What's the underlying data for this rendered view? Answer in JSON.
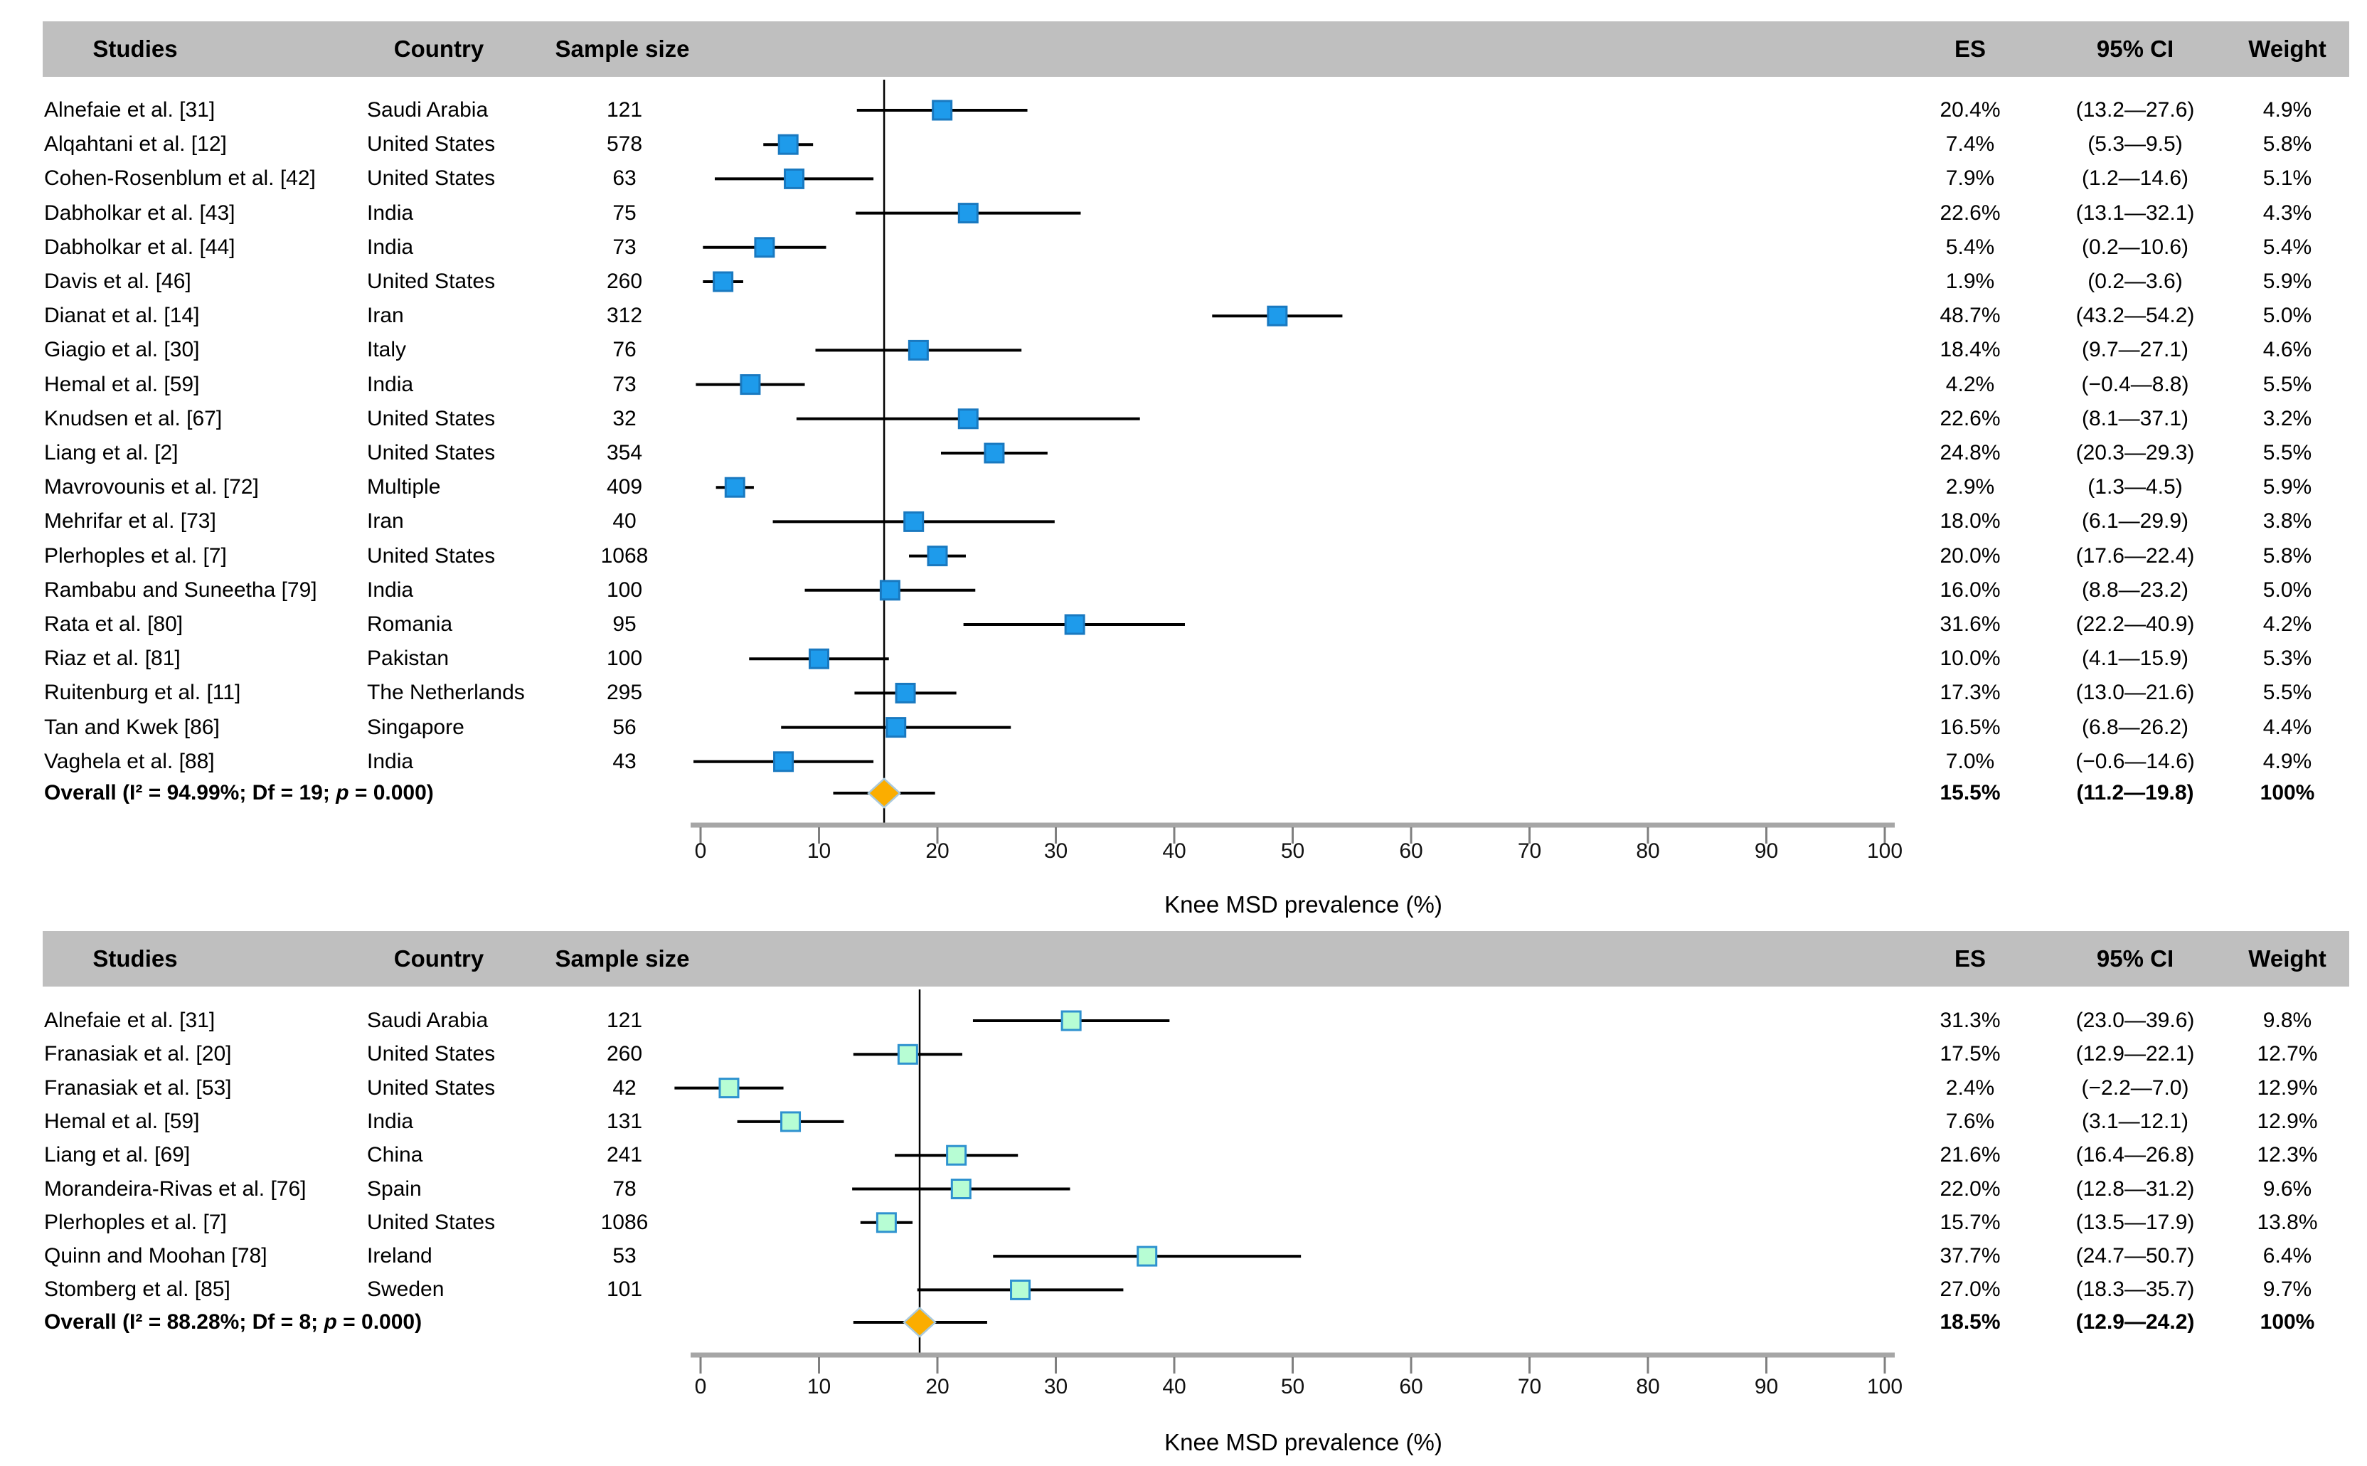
{
  "figure": {
    "description_label": "Forest plots of knee musculoskeletal disorder prevalence"
  },
  "columns": {
    "studies": "Studies",
    "country": "Country",
    "sample_size": "Sample size",
    "es": "ES",
    "ci": "95% CI",
    "weight": "Weight"
  },
  "axis": {
    "title": "Knee MSD prevalence (%)",
    "min": 0,
    "max": 100,
    "step": 10,
    "tick_labels": [
      "0",
      "10",
      "20",
      "30",
      "40",
      "50",
      "60",
      "70",
      "80",
      "90",
      "100"
    ]
  },
  "colors": {
    "header_bg": "#BFBFBF",
    "text": "#000000",
    "ci_line": "#000000",
    "reference_line": "#000000",
    "axis_line": "#A6A6A6",
    "axis_tick": "#7F7F7F",
    "top_marker_fill": "#1E9BEB",
    "top_marker_stroke": "#1979C0",
    "bottom_marker_fill": "#B7FDD4",
    "bottom_marker_stroke": "#2E92CF",
    "diamond_fill": "#FBAD00",
    "diamond_stroke": "#A9C9DC"
  },
  "chart_data": [
    {
      "id": "top",
      "type": "forest",
      "xlabel": "Knee MSD prevalence (%)",
      "xlim": [
        0,
        100
      ],
      "reference_value": 15.5,
      "marker": {
        "fill": "#1E9BEB",
        "stroke": "#1979C0"
      },
      "rows": [
        {
          "study": "Alnefaie et al. [31]",
          "country": "Saudi Arabia",
          "sample": "121",
          "es": 20.4,
          "ci_low": 13.2,
          "ci_high": 27.6,
          "es_label": "20.4%",
          "ci_label": "(13.2—27.6)",
          "weight_label": "4.9%"
        },
        {
          "study": "Alqahtani et al. [12]",
          "country": "United States",
          "sample": "578",
          "es": 7.4,
          "ci_low": 5.3,
          "ci_high": 9.5,
          "es_label": "7.4%",
          "ci_label": "(5.3—9.5)",
          "weight_label": "5.8%"
        },
        {
          "study": "Cohen-Rosenblum et al. [42]",
          "country": "United States",
          "sample": "63",
          "es": 7.9,
          "ci_low": 1.2,
          "ci_high": 14.6,
          "es_label": "7.9%",
          "ci_label": "(1.2—14.6)",
          "weight_label": "5.1%"
        },
        {
          "study": "Dabholkar et al. [43]",
          "country": "India",
          "sample": "75",
          "es": 22.6,
          "ci_low": 13.1,
          "ci_high": 32.1,
          "es_label": "22.6%",
          "ci_label": "(13.1—32.1)",
          "weight_label": "4.3%"
        },
        {
          "study": "Dabholkar et al. [44]",
          "country": "India",
          "sample": "73",
          "es": 5.4,
          "ci_low": 0.2,
          "ci_high": 10.6,
          "es_label": "5.4%",
          "ci_label": "(0.2—10.6)",
          "weight_label": "5.4%"
        },
        {
          "study": "Davis et al. [46]",
          "country": "United States",
          "sample": "260",
          "es": 1.9,
          "ci_low": 0.2,
          "ci_high": 3.6,
          "es_label": "1.9%",
          "ci_label": "(0.2—3.6)",
          "weight_label": "5.9%"
        },
        {
          "study": "Dianat et al. [14]",
          "country": "Iran",
          "sample": "312",
          "es": 48.7,
          "ci_low": 43.2,
          "ci_high": 54.2,
          "es_label": "48.7%",
          "ci_label": "(43.2—54.2)",
          "weight_label": "5.0%"
        },
        {
          "study": "Giagio et al. [30]",
          "country": "Italy",
          "sample": "76",
          "es": 18.4,
          "ci_low": 9.7,
          "ci_high": 27.1,
          "es_label": "18.4%",
          "ci_label": "(9.7—27.1)",
          "weight_label": "4.6%"
        },
        {
          "study": "Hemal et al. [59]",
          "country": "India",
          "sample": "73",
          "es": 4.2,
          "ci_low": -0.4,
          "ci_high": 8.8,
          "es_label": "4.2%",
          "ci_label": "(−0.4—8.8)",
          "weight_label": "5.5%"
        },
        {
          "study": "Knudsen et al. [67]",
          "country": "United States",
          "sample": "32",
          "es": 22.6,
          "ci_low": 8.1,
          "ci_high": 37.1,
          "es_label": "22.6%",
          "ci_label": "(8.1—37.1)",
          "weight_label": "3.2%"
        },
        {
          "study": "Liang et al. [2]",
          "country": "United States",
          "sample": "354",
          "es": 24.8,
          "ci_low": 20.3,
          "ci_high": 29.3,
          "es_label": "24.8%",
          "ci_label": "(20.3—29.3)",
          "weight_label": "5.5%"
        },
        {
          "study": "Mavrovounis et al. [72]",
          "country": "Multiple",
          "sample": "409",
          "es": 2.9,
          "ci_low": 1.3,
          "ci_high": 4.5,
          "es_label": "2.9%",
          "ci_label": "(1.3—4.5)",
          "weight_label": "5.9%"
        },
        {
          "study": "Mehrifar et al. [73]",
          "country": "Iran",
          "sample": "40",
          "es": 18.0,
          "ci_low": 6.1,
          "ci_high": 29.9,
          "es_label": "18.0%",
          "ci_label": "(6.1—29.9)",
          "weight_label": "3.8%"
        },
        {
          "study": "Plerhoples et al. [7]",
          "country": "United States",
          "sample": "1068",
          "es": 20.0,
          "ci_low": 17.6,
          "ci_high": 22.4,
          "es_label": "20.0%",
          "ci_label": "(17.6—22.4)",
          "weight_label": "5.8%"
        },
        {
          "study": "Rambabu and Suneetha [79]",
          "country": "India",
          "sample": "100",
          "es": 16.0,
          "ci_low": 8.8,
          "ci_high": 23.2,
          "es_label": "16.0%",
          "ci_label": "(8.8—23.2)",
          "weight_label": "5.0%"
        },
        {
          "study": "Rata et al. [80]",
          "country": "Romania",
          "sample": "95",
          "es": 31.6,
          "ci_low": 22.2,
          "ci_high": 40.9,
          "es_label": "31.6%",
          "ci_label": "(22.2—40.9)",
          "weight_label": "4.2%"
        },
        {
          "study": "Riaz et al. [81]",
          "country": "Pakistan",
          "sample": "100",
          "es": 10.0,
          "ci_low": 4.1,
          "ci_high": 15.9,
          "es_label": "10.0%",
          "ci_label": "(4.1—15.9)",
          "weight_label": "5.3%"
        },
        {
          "study": "Ruitenburg et al. [11]",
          "country": "The Netherlands",
          "sample": "295",
          "es": 17.3,
          "ci_low": 13.0,
          "ci_high": 21.6,
          "es_label": "17.3%",
          "ci_label": "(13.0—21.6)",
          "weight_label": "5.5%"
        },
        {
          "study": "Tan and Kwek [86]",
          "country": "Singapore",
          "sample": "56",
          "es": 16.5,
          "ci_low": 6.8,
          "ci_high": 26.2,
          "es_label": "16.5%",
          "ci_label": "(6.8—26.2)",
          "weight_label": "4.4%"
        },
        {
          "study": "Vaghela et al. [88]",
          "country": "India",
          "sample": "43",
          "es": 7.0,
          "ci_low": -0.6,
          "ci_high": 14.6,
          "es_label": "7.0%",
          "ci_label": "(−0.6—14.6)",
          "weight_label": "4.9%"
        }
      ],
      "overall": {
        "label_prefix": "Overall (I² = 94.99%; Df = 19; ",
        "label_p": "p",
        "label_suffix": " = 0.000)",
        "es": 15.5,
        "ci_low": 11.2,
        "ci_high": 19.8,
        "es_label": "15.5%",
        "ci_label": "(11.2—19.8)",
        "weight_label": "100%"
      }
    },
    {
      "id": "bottom",
      "type": "forest",
      "xlabel": "Knee MSD prevalence (%)",
      "xlim": [
        0,
        100
      ],
      "reference_value": 18.5,
      "marker": {
        "fill": "#B7FDD4",
        "stroke": "#2E92CF"
      },
      "rows": [
        {
          "study": "Alnefaie et al. [31]",
          "country": "Saudi Arabia",
          "sample": "121",
          "es": 31.3,
          "ci_low": 23.0,
          "ci_high": 39.6,
          "es_label": "31.3%",
          "ci_label": "(23.0—39.6)",
          "weight_label": "9.8%"
        },
        {
          "study": "Franasiak et al. [20]",
          "country": "United States",
          "sample": "260",
          "es": 17.5,
          "ci_low": 12.9,
          "ci_high": 22.1,
          "es_label": "17.5%",
          "ci_label": "(12.9—22.1)",
          "weight_label": "12.7%"
        },
        {
          "study": "Franasiak et al. [53]",
          "country": "United States",
          "sample": "42",
          "es": 2.4,
          "ci_low": -2.2,
          "ci_high": 7.0,
          "es_label": "2.4%",
          "ci_label": "(−2.2—7.0)",
          "weight_label": "12.9%"
        },
        {
          "study": "Hemal et al. [59]",
          "country": "India",
          "sample": "131",
          "es": 7.6,
          "ci_low": 3.1,
          "ci_high": 12.1,
          "es_label": "7.6%",
          "ci_label": "(3.1—12.1)",
          "weight_label": "12.9%"
        },
        {
          "study": "Liang et al. [69]",
          "country": "China",
          "sample": "241",
          "es": 21.6,
          "ci_low": 16.4,
          "ci_high": 26.8,
          "es_label": "21.6%",
          "ci_label": "(16.4—26.8)",
          "weight_label": "12.3%"
        },
        {
          "study": "Morandeira-Rivas et al. [76]",
          "country": "Spain",
          "sample": "78",
          "es": 22.0,
          "ci_low": 12.8,
          "ci_high": 31.2,
          "es_label": "22.0%",
          "ci_label": "(12.8—31.2)",
          "weight_label": "9.6%"
        },
        {
          "study": "Plerhoples et al. [7]",
          "country": "United States",
          "sample": "1086",
          "es": 15.7,
          "ci_low": 13.5,
          "ci_high": 17.9,
          "es_label": "15.7%",
          "ci_label": "(13.5—17.9)",
          "weight_label": "13.8%"
        },
        {
          "study": "Quinn and Moohan [78]",
          "country": "Ireland",
          "sample": "53",
          "es": 37.7,
          "ci_low": 24.7,
          "ci_high": 50.7,
          "es_label": "37.7%",
          "ci_label": "(24.7—50.7)",
          "weight_label": "6.4%"
        },
        {
          "study": "Stomberg et al. [85]",
          "country": "Sweden",
          "sample": "101",
          "es": 27.0,
          "ci_low": 18.3,
          "ci_high": 35.7,
          "es_label": "27.0%",
          "ci_label": "(18.3—35.7)",
          "weight_label": "9.7%"
        }
      ],
      "overall": {
        "label_prefix": "Overall (I² = 88.28%; Df = 8; ",
        "label_p": "p",
        "label_suffix": " = 0.000)",
        "es": 18.5,
        "ci_low": 12.9,
        "ci_high": 24.2,
        "es_label": "18.5%",
        "ci_label": "(12.9—24.2)",
        "weight_label": "100%"
      }
    }
  ]
}
